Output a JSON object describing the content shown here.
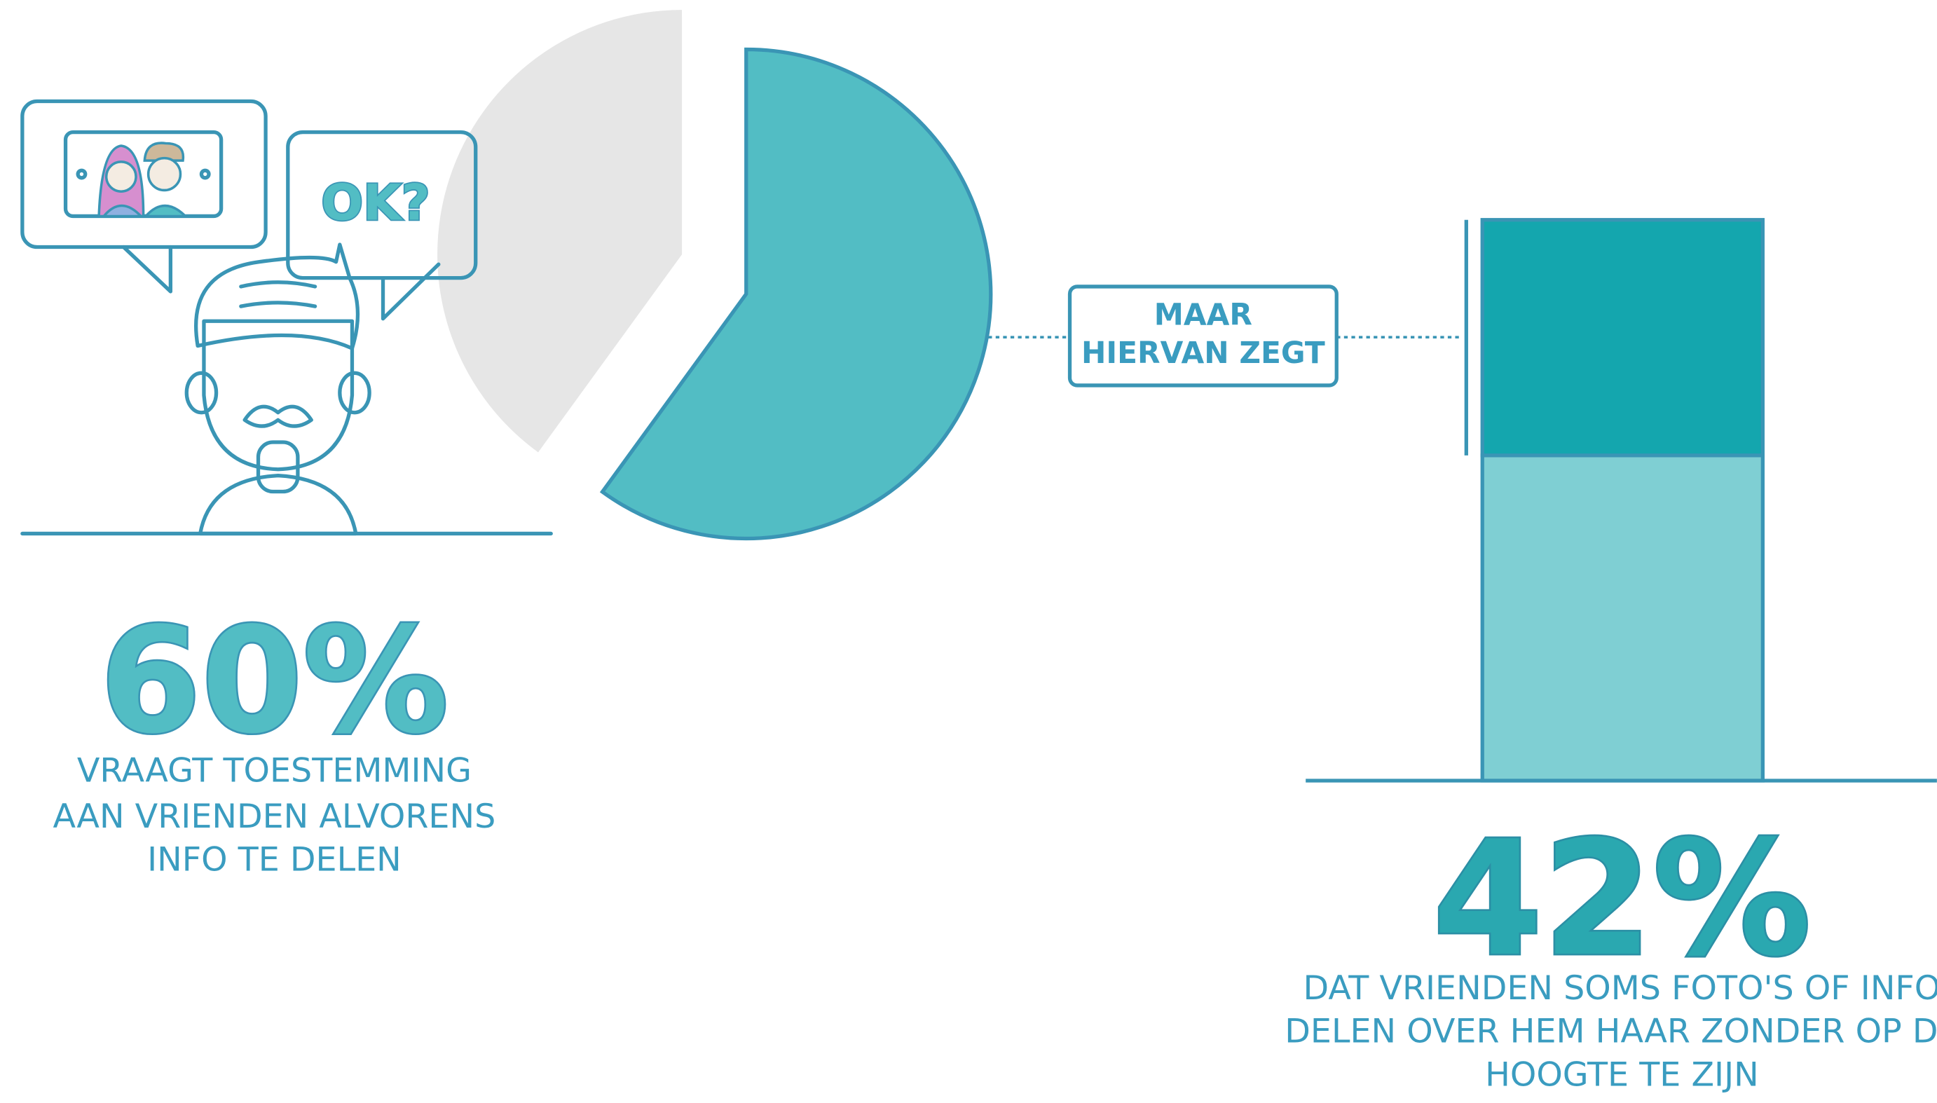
{
  "chart_data": [
    {
      "type": "pie",
      "values": [
        60,
        40
      ],
      "colors": [
        "#52bdc4",
        "#e6e6e6"
      ],
      "value_labels": [
        "60%",
        null
      ],
      "caption": [
        "VRAAGT TOESTEMMING",
        "AAN VRIENDEN ALVORENS",
        "INFO TE DELEN"
      ]
    },
    {
      "type": "bar",
      "values": [
        58,
        42
      ],
      "colors": [
        "#7fcfd3",
        "#14a6ae"
      ],
      "value_labels": [
        null,
        "42%"
      ],
      "ylim": [
        0,
        100
      ],
      "caption": [
        "DAT VRIENDEN SOMS FOTO'S OF INFO",
        "DELEN OVER HEM HAAR  ZONDER OP DE",
        "HOOGTE TE ZIJN"
      ]
    }
  ],
  "annotations": {
    "bubble": "OK?",
    "callout": [
      "MAAR",
      "HIERVAN ZEGT"
    ]
  }
}
